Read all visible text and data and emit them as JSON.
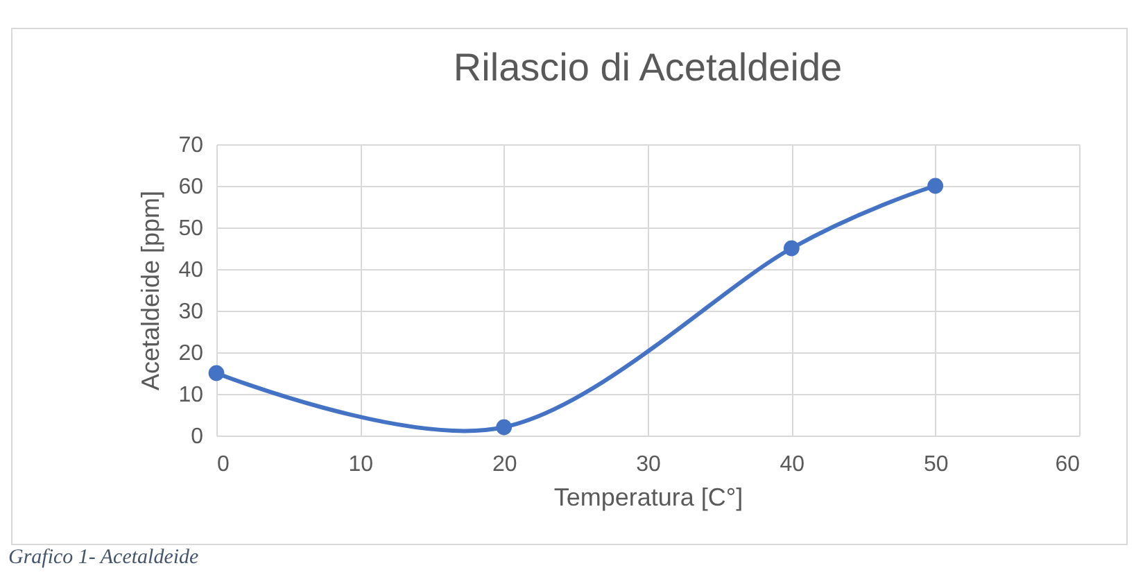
{
  "chart_data": {
    "type": "line",
    "title": "Rilascio di Acetaldeide",
    "xlabel": "Temperatura [C°]",
    "ylabel": "Acetaldeide [ppm]",
    "x": [
      0,
      20,
      40,
      50
    ],
    "series": [
      {
        "color": "#4472c4",
        "values": [
          15,
          2,
          45,
          60
        ]
      }
    ],
    "xlim": [
      0,
      60
    ],
    "xticks": [
      0,
      10,
      20,
      30,
      40,
      50,
      60
    ],
    "ylim": [
      0,
      70
    ],
    "yticks": [
      0,
      10,
      20,
      30,
      40,
      50,
      60,
      70
    ],
    "grid": true,
    "marker": "circle",
    "line_style": "solid",
    "annotations": [
      "Grafico 1- Acetaldeide"
    ]
  }
}
